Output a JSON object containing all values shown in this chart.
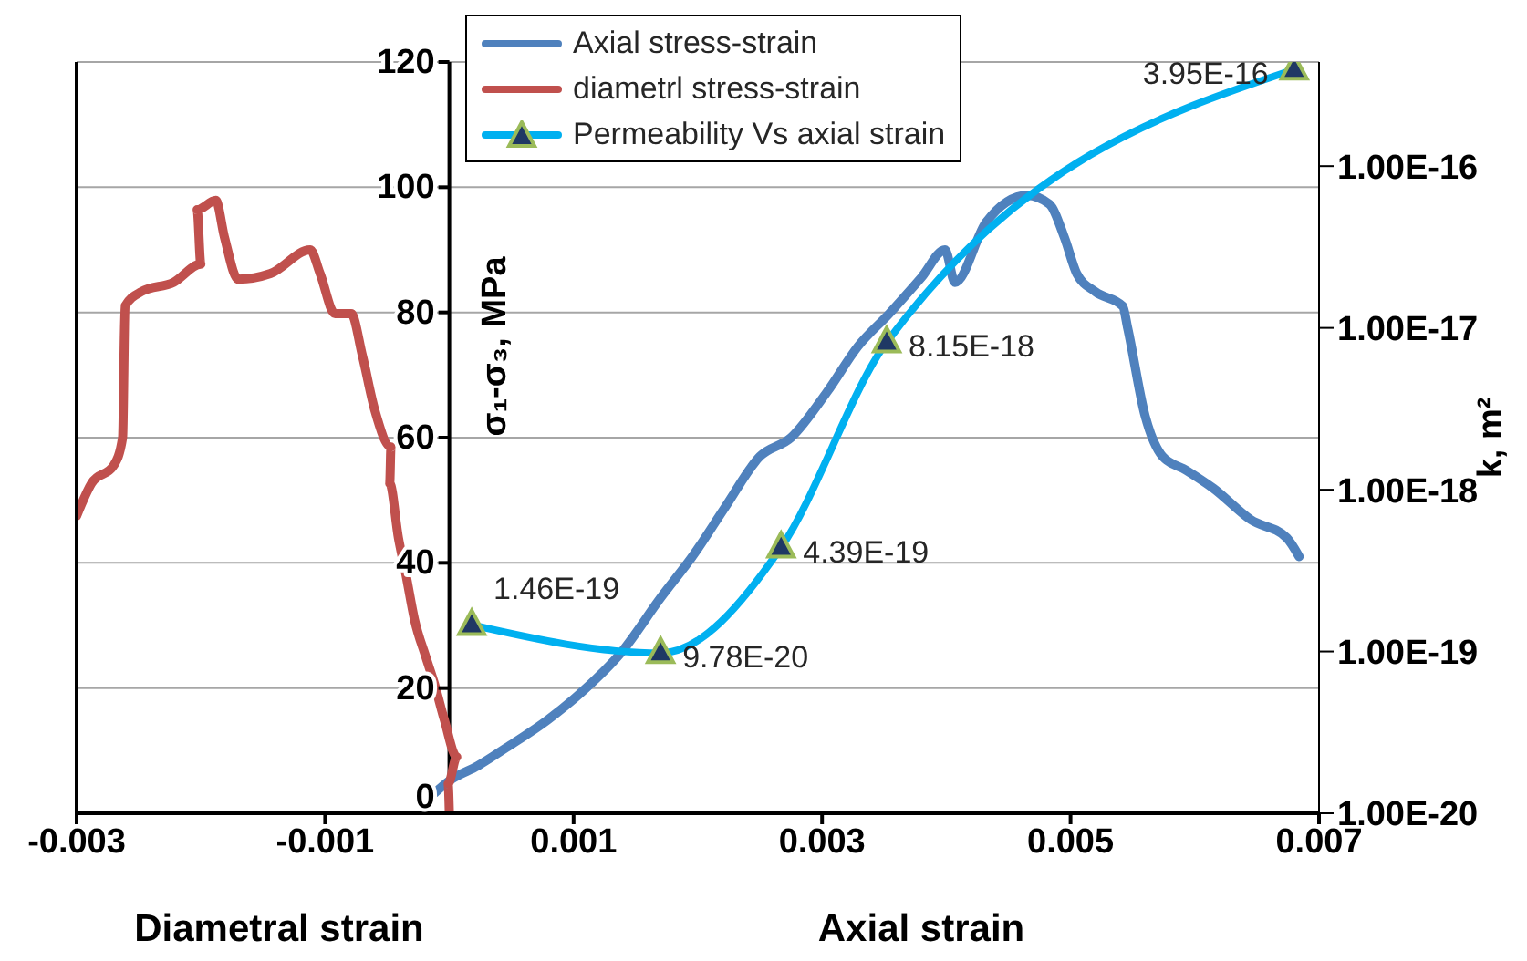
{
  "chart_data": {
    "type": "line",
    "xlabel": "Axial strain",
    "ylabel": "σ₁-σ₃, MPa",
    "y2label": "k, m²",
    "xlim": [
      -0.003,
      0.007
    ],
    "xticks": [
      -0.003,
      -0.001,
      0.001,
      0.003,
      0.005,
      0.007
    ],
    "ylim": [
      0,
      120
    ],
    "yticks": [
      0,
      20,
      40,
      60,
      80,
      100,
      120
    ],
    "y2lim": [
      1e-20,
      4.4e-16
    ],
    "y2ticks": [
      {
        "value": 1e-20,
        "label": "1.00E-20"
      },
      {
        "value": 1e-19,
        "label": "1.00E-19"
      },
      {
        "value": 1e-18,
        "label": "1.00E-18"
      },
      {
        "value": 1e-17,
        "label": "1.00E-17"
      },
      {
        "value": 1e-16,
        "label": "1.00E-16"
      }
    ],
    "log": "y2",
    "grid": "y",
    "legend": "top right",
    "line_style": "solid",
    "annotations": [
      "Diametral strain"
    ],
    "series": [
      {
        "name": "Axial stress-strain",
        "color": "#4f81bd",
        "marker": "none",
        "x": [
          -0.00012,
          0,
          0.00023,
          0.00046,
          0.00079,
          0.00109,
          0.00138,
          0.0017,
          0.00197,
          0.00222,
          0.0025,
          0.00275,
          0.00304,
          0.00329,
          0.00354,
          0.0038,
          0.00399,
          0.00407,
          0.00432,
          0.00465,
          0.00483,
          0.00495,
          0.00505,
          0.0052,
          0.00542,
          0.00546,
          0.0056,
          0.00574,
          0.00593,
          0.00615,
          0.00645,
          0.00674,
          0.00684
        ],
        "values": [
          3.2,
          5.2,
          7.6,
          10.5,
          14.9,
          19.8,
          25.6,
          34.4,
          41.4,
          48.9,
          57,
          60,
          67.3,
          74.6,
          79.8,
          85.6,
          90,
          84.8,
          94.4,
          98.7,
          97.3,
          92,
          86.2,
          83.3,
          81,
          77.5,
          63.5,
          57,
          54.8,
          51.9,
          46.9,
          44,
          41
        ]
      },
      {
        "name": "diametrl stress-strain",
        "color": "#c0504d",
        "marker": "none",
        "x": [
          0,
          -1e-05,
          6e-05,
          -4e-05,
          -0.00012,
          -0.00019,
          -0.00028,
          -0.00035,
          -0.00041,
          -0.00048,
          -0.00047,
          -0.0006,
          -0.0007,
          -0.00079,
          -0.00092,
          -0.00104,
          -0.00112,
          -0.00144,
          -0.0017,
          -0.00181,
          -0.00188,
          -0.00203,
          -0.002,
          -0.00222,
          -0.00248,
          -0.00261,
          -0.00263,
          -0.0027,
          -0.00288,
          -0.003
        ],
        "values": [
          0,
          4.7,
          9,
          14.9,
          20.7,
          25,
          30.9,
          38.2,
          44,
          52.7,
          58.5,
          64.4,
          73.1,
          79.8,
          79.8,
          86.2,
          90,
          86.2,
          85.3,
          92,
          97.9,
          96.4,
          87.7,
          84.8,
          83.3,
          81,
          60,
          55.6,
          52.7,
          47.5
        ]
      },
      {
        "name": "Permeability Vs axial strain",
        "color": "#00b0f0",
        "marker": "triangle",
        "axis": "y2",
        "x": [
          0.00018,
          0.0017,
          0.00267,
          0.00352,
          0.0068
        ],
        "values": [
          1.46e-19,
          9.78e-20,
          4.39e-19,
          8.15e-18,
          3.95e-16
        ],
        "value_labels": [
          "1.46E-19",
          "9.78E-20",
          "4.39E-19",
          "8.15E-18",
          "3.95E-16"
        ]
      }
    ]
  }
}
